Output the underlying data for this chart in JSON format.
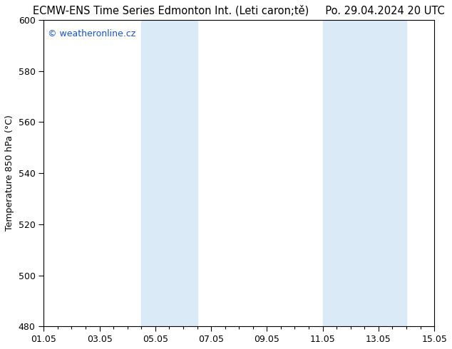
{
  "title_left": "ECMW-ENS Time Series Edmonton Int. (Leti caron;tě)",
  "title_right": "Po. 29.04.2024 20 UTC",
  "ylabel": "Temperature 850 hPa (°C)",
  "ylim": [
    480,
    600
  ],
  "yticks": [
    480,
    500,
    520,
    540,
    560,
    580,
    600
  ],
  "xlim": [
    0,
    14
  ],
  "xtick_labels": [
    "01.05",
    "03.05",
    "05.05",
    "07.05",
    "09.05",
    "11.05",
    "13.05",
    "15.05"
  ],
  "xtick_positions": [
    0,
    2,
    4,
    6,
    8,
    10,
    12,
    14
  ],
  "shaded_bands": [
    {
      "xmin": 3.5,
      "xmax": 5.5,
      "color": "#daeaf6"
    },
    {
      "xmin": 10.0,
      "xmax": 13.0,
      "color": "#daeaf6"
    }
  ],
  "watermark": "© weatheronline.cz",
  "watermark_color": "#1a52c9",
  "bg_color": "#ffffff",
  "plot_bg_color": "#ffffff",
  "title_fontsize": 10.5,
  "tick_fontsize": 9,
  "ylabel_fontsize": 9
}
